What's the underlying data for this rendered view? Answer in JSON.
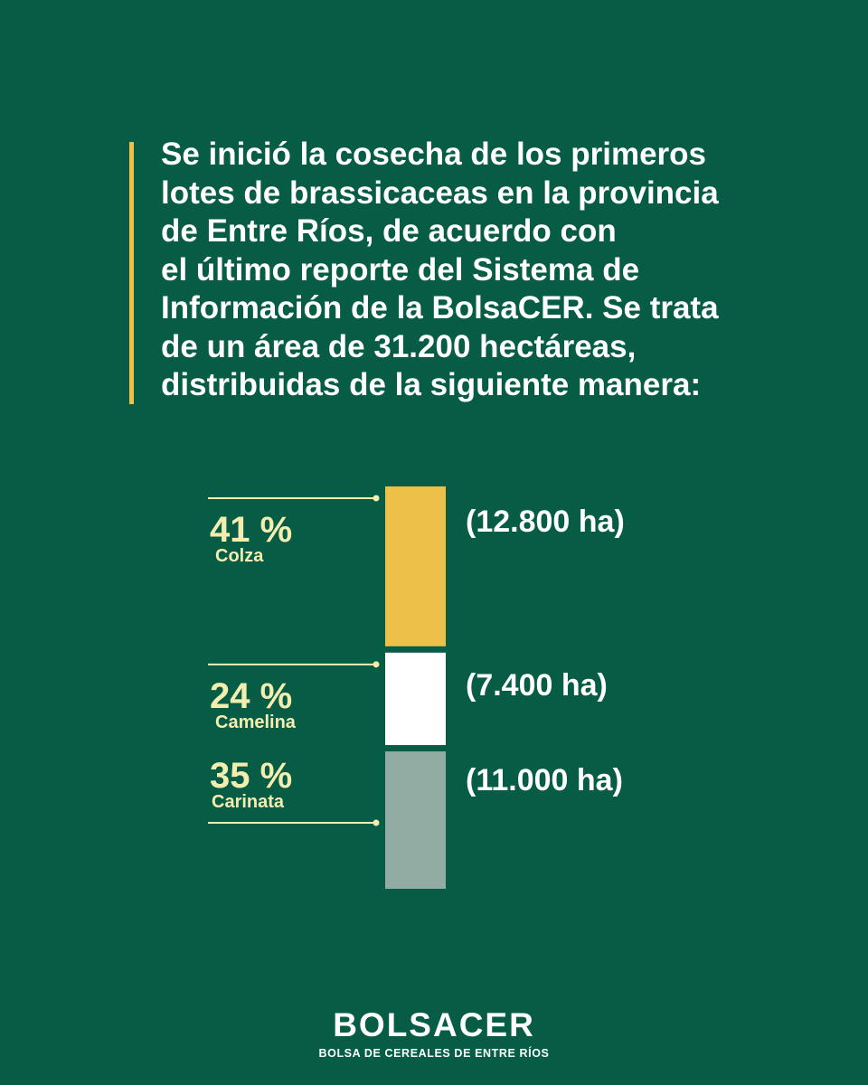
{
  "intro_text": "Se inició la cosecha de los primeros\nlotes de brassicaceas en la provincia\nde Entre Ríos, de acuerdo con\nel último reporte del Sistema de\nInformación de la BolsaCER. Se trata\nde un área de 31.200 hectáreas,\ndistribuidas de la siguiente manera:",
  "chart_data": {
    "type": "bar",
    "orientation": "stacked-vertical",
    "unit": "ha",
    "total": 31200,
    "segments": [
      {
        "name": "Colza",
        "percent_label": "41 %",
        "percent": 41,
        "value": 12800,
        "value_label": "(12.800 ha)",
        "color": "#ecc14a"
      },
      {
        "name": "Camelina",
        "percent_label": "24 %",
        "percent": 24,
        "value": 7400,
        "value_label": "(7.400 ha)",
        "color": "#ffffff"
      },
      {
        "name": "Carinata",
        "percent_label": "35 %",
        "percent": 35,
        "value": 11000,
        "value_label": "(11.000 ha)",
        "color": "#93aca3"
      }
    ]
  },
  "colors": {
    "background": "#075c45",
    "accent": "#ecc14a",
    "label_text": "#f3eeb0",
    "leader_line": "#f3eeb0"
  },
  "logo": {
    "name": "BOLSACER",
    "subtitle": "BOLSA DE CEREALES DE ENTRE RÍOS"
  }
}
